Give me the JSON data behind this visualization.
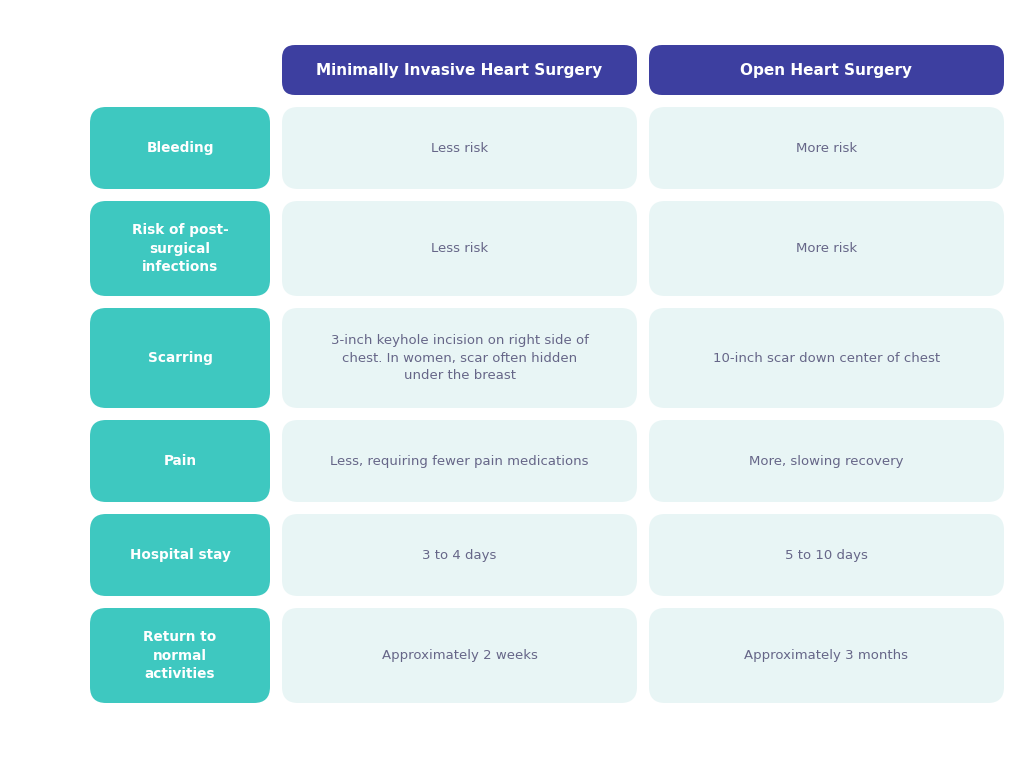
{
  "col1_header": "Minimally Invasive Heart Surgery",
  "col2_header": "Open Heart Surgery",
  "header_color": "#3d3fa0",
  "row_label_color": "#3ec8c0",
  "cell_bg_color": "#e8f5f5",
  "background_color": "#ffffff",
  "header_text_color": "#ffffff",
  "label_text_color": "#ffffff",
  "cell_text_color": "#666688",
  "rows": [
    {
      "label": "Bleeding",
      "col1": "Less risk",
      "col2": "More risk"
    },
    {
      "label": "Risk of post-\nsurgical\ninfections",
      "col1": "Less risk",
      "col2": "More risk"
    },
    {
      "label": "Scarring",
      "col1": "3-inch keyhole incision on right side of\nchest. In women, scar often hidden\nunder the breast",
      "col2": "10-inch scar down center of chest"
    },
    {
      "label": "Pain",
      "col1": "Less, requiring fewer pain medications",
      "col2": "More, slowing recovery"
    },
    {
      "label": "Hospital stay",
      "col1": "3 to 4 days",
      "col2": "5 to 10 days"
    },
    {
      "label": "Return to\nnormal\nactivities",
      "col1": "Approximately 2 weeks",
      "col2": "Approximately 3 months"
    }
  ],
  "figwidth": 10.24,
  "figheight": 7.68,
  "dpi": 100
}
